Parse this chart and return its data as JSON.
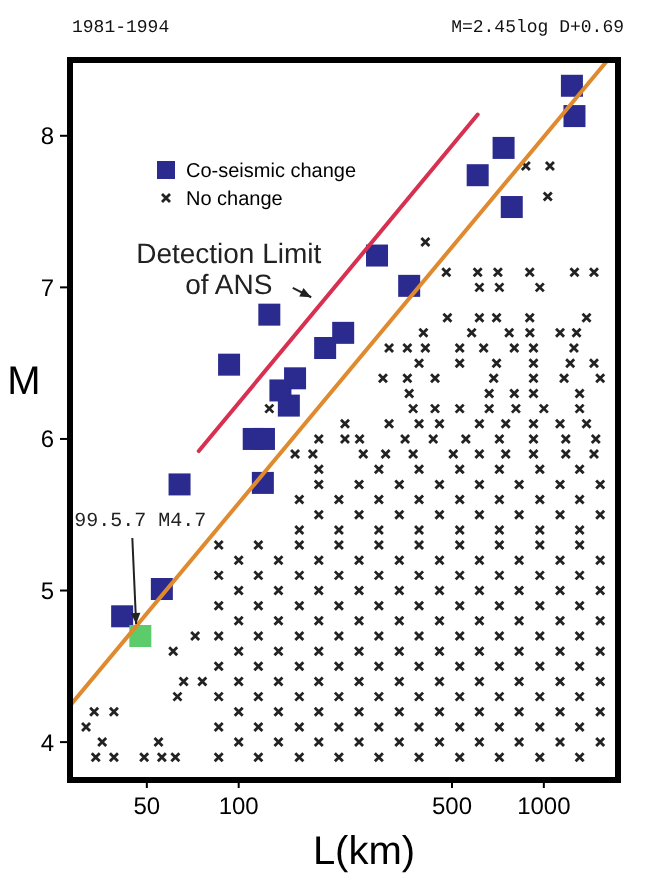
{
  "chart_data": {
    "type": "scatter",
    "title": "1981-1994",
    "subtitle": "M=2.45log D+0.69",
    "xlabel": "L(km)",
    "ylabel": "M",
    "log": "x",
    "xlim": [
      28,
      1750
    ],
    "ylim": [
      3.75,
      8.5
    ],
    "xticks": [
      50,
      100,
      500,
      1000
    ],
    "yticks": [
      4,
      5,
      6,
      7,
      8
    ],
    "grid": false,
    "legend": "top left",
    "series": [
      {
        "name": "Co-seismic change",
        "marker": "square",
        "color": "#2b2b8f",
        "x": [
          1236,
          1260,
          738,
          607,
          785,
          284,
          362,
          126,
          220,
          192,
          93,
          153,
          137,
          146,
          112,
          121,
          120,
          64,
          56,
          41.5
        ],
        "values": [
          8.33,
          8.13,
          7.92,
          7.74,
          7.53,
          7.21,
          7.01,
          6.82,
          6.7,
          6.6,
          6.49,
          6.4,
          6.32,
          6.22,
          6.0,
          6.0,
          5.71,
          5.7,
          5.01,
          4.83
        ]
      },
      {
        "name": "No change",
        "marker": "cross",
        "color": "#222222",
        "x": [
          34,
          39,
          49,
          56,
          62,
          86,
          116,
          158,
          213,
          288,
          390,
          530,
          715,
          970,
          1310,
          35.7,
          54.6,
          100,
          135,
          183,
          248,
          336,
          455,
          615,
          830,
          1130,
          1530,
          31.6,
          86,
          116,
          158,
          213,
          288,
          390,
          530,
          715,
          970,
          1310,
          33.6,
          39,
          100,
          135,
          183,
          248,
          336,
          455,
          615,
          830,
          1130,
          1530,
          63,
          86,
          116,
          158,
          213,
          288,
          390,
          530,
          715,
          970,
          1310,
          66,
          76,
          100,
          135,
          183,
          248,
          336,
          455,
          615,
          830,
          1130,
          1530,
          86,
          116,
          158,
          213,
          288,
          390,
          530,
          715,
          970,
          1310,
          61,
          100,
          135,
          183,
          248,
          336,
          455,
          615,
          830,
          1130,
          1530,
          72,
          86,
          116,
          158,
          213,
          288,
          390,
          530,
          715,
          970,
          1310,
          100,
          135,
          183,
          248,
          336,
          455,
          615,
          830,
          1130,
          1530,
          86,
          116,
          158,
          213,
          288,
          390,
          530,
          715,
          970,
          1310,
          100,
          135,
          183,
          248,
          336,
          455,
          615,
          830,
          1130,
          1530,
          86,
          116,
          158,
          213,
          288,
          390,
          530,
          715,
          970,
          1310,
          100,
          135,
          183,
          248,
          336,
          455,
          615,
          830,
          1130,
          1530,
          86,
          116,
          158,
          213,
          288,
          390,
          530,
          715,
          970,
          1310,
          158,
          213,
          288,
          390,
          530,
          715,
          970,
          1310,
          183,
          248,
          336,
          455,
          615,
          830,
          1130,
          1530,
          158,
          213,
          288,
          390,
          530,
          715,
          970,
          1310,
          183,
          248,
          336,
          455,
          615,
          830,
          1130,
          1530,
          183,
          288,
          390,
          530,
          715,
          970,
          1310,
          153,
          175,
          256,
          303,
          373,
          505,
          615,
          750,
          925,
          1180,
          1460,
          183,
          223,
          249,
          351,
          434,
          555,
          715,
          925,
          1180,
          1480,
          223,
          311,
          390,
          455,
          615,
          750,
          925,
          1130,
          1380,
          126,
          373,
          440,
          530,
          662,
          810,
          1000,
          1310,
          362,
          662,
          800,
          925,
          1310,
          297,
          357,
          440,
          685,
          925,
          1165,
          1530,
          390,
          530,
          700,
          925,
          1220,
          1460,
          311,
          357,
          409,
          530,
          635,
          800,
          925,
          1255,
          403,
          580,
          770,
          900,
          1130,
          1280,
          483,
          615,
          700,
          899,
          1380,
          615,
          715,
          970,
          479,
          607,
          707,
          899,
          1260,
          1460,
          409,
          1030,
          873,
          1047
        ],
        "values": [
          3.9,
          3.9,
          3.9,
          3.9,
          3.9,
          3.9,
          3.9,
          3.9,
          3.9,
          3.9,
          3.9,
          3.9,
          3.9,
          3.9,
          3.9,
          4.0,
          4.0,
          4.0,
          4.0,
          4.0,
          4.0,
          4.0,
          4.0,
          4.0,
          4.0,
          4.0,
          4.0,
          4.1,
          4.1,
          4.1,
          4.1,
          4.1,
          4.1,
          4.1,
          4.1,
          4.1,
          4.1,
          4.1,
          4.2,
          4.2,
          4.2,
          4.2,
          4.2,
          4.2,
          4.2,
          4.2,
          4.2,
          4.2,
          4.2,
          4.2,
          4.3,
          4.3,
          4.3,
          4.3,
          4.3,
          4.3,
          4.3,
          4.3,
          4.3,
          4.3,
          4.3,
          4.4,
          4.4,
          4.4,
          4.4,
          4.4,
          4.4,
          4.4,
          4.4,
          4.4,
          4.4,
          4.4,
          4.4,
          4.5,
          4.5,
          4.5,
          4.5,
          4.5,
          4.5,
          4.5,
          4.5,
          4.5,
          4.5,
          4.6,
          4.6,
          4.6,
          4.6,
          4.6,
          4.6,
          4.6,
          4.6,
          4.6,
          4.6,
          4.6,
          4.7,
          4.7,
          4.7,
          4.7,
          4.7,
          4.7,
          4.7,
          4.7,
          4.7,
          4.7,
          4.7,
          4.8,
          4.8,
          4.8,
          4.8,
          4.8,
          4.8,
          4.8,
          4.8,
          4.8,
          4.8,
          4.9,
          4.9,
          4.9,
          4.9,
          4.9,
          4.9,
          4.9,
          4.9,
          4.9,
          4.9,
          5.0,
          5.0,
          5.0,
          5.0,
          5.0,
          5.0,
          5.0,
          5.0,
          5.0,
          5.0,
          5.1,
          5.1,
          5.1,
          5.1,
          5.1,
          5.1,
          5.1,
          5.1,
          5.1,
          5.1,
          5.2,
          5.2,
          5.2,
          5.2,
          5.2,
          5.2,
          5.2,
          5.2,
          5.2,
          5.2,
          5.3,
          5.3,
          5.3,
          5.3,
          5.3,
          5.3,
          5.3,
          5.3,
          5.3,
          5.3,
          5.4,
          5.4,
          5.4,
          5.4,
          5.4,
          5.4,
          5.4,
          5.4,
          5.5,
          5.5,
          5.5,
          5.5,
          5.5,
          5.5,
          5.5,
          5.5,
          5.6,
          5.6,
          5.6,
          5.6,
          5.6,
          5.6,
          5.6,
          5.6,
          5.7,
          5.7,
          5.7,
          5.7,
          5.7,
          5.7,
          5.7,
          5.7,
          5.8,
          5.8,
          5.8,
          5.8,
          5.8,
          5.8,
          5.8,
          5.9,
          5.9,
          5.9,
          5.9,
          5.9,
          5.9,
          5.9,
          5.9,
          5.9,
          5.9,
          5.9,
          6.0,
          6.0,
          6.0,
          6.0,
          6.0,
          6.0,
          6.0,
          6.0,
          6.0,
          6.0,
          6.1,
          6.1,
          6.1,
          6.1,
          6.1,
          6.1,
          6.1,
          6.1,
          6.1,
          6.2,
          6.2,
          6.2,
          6.2,
          6.2,
          6.2,
          6.2,
          6.2,
          6.3,
          6.3,
          6.3,
          6.3,
          6.3,
          6.4,
          6.4,
          6.4,
          6.4,
          6.4,
          6.4,
          6.4,
          6.5,
          6.5,
          6.5,
          6.5,
          6.5,
          6.5,
          6.6,
          6.6,
          6.6,
          6.6,
          6.6,
          6.6,
          6.6,
          6.6,
          6.7,
          6.7,
          6.7,
          6.7,
          6.7,
          6.7,
          6.8,
          6.8,
          6.8,
          6.8,
          6.8,
          7.0,
          7.0,
          7.0,
          7.1,
          7.1,
          7.1,
          7.1,
          7.1,
          7.1,
          7.3,
          7.6,
          7.8,
          7.8
        ]
      },
      {
        "marker": "square",
        "color": "#5ccc6a",
        "x": [
          47.6
        ],
        "values": [
          4.7
        ]
      },
      {
        "type": "line",
        "color": "#d83050",
        "x": [
          74,
          607
        ],
        "values": [
          5.92,
          8.14
        ]
      },
      {
        "type": "line",
        "color": "#e08a30",
        "x": [
          28,
          1620
        ],
        "values": [
          4.24,
          8.5
        ]
      }
    ],
    "annotations": [
      {
        "text": "Detection Limit of ANS",
        "x": 183,
        "y": 6.87
      },
      {
        "text": "99.5.7 M4.7",
        "x": 47.6,
        "y": 4.7
      }
    ]
  }
}
